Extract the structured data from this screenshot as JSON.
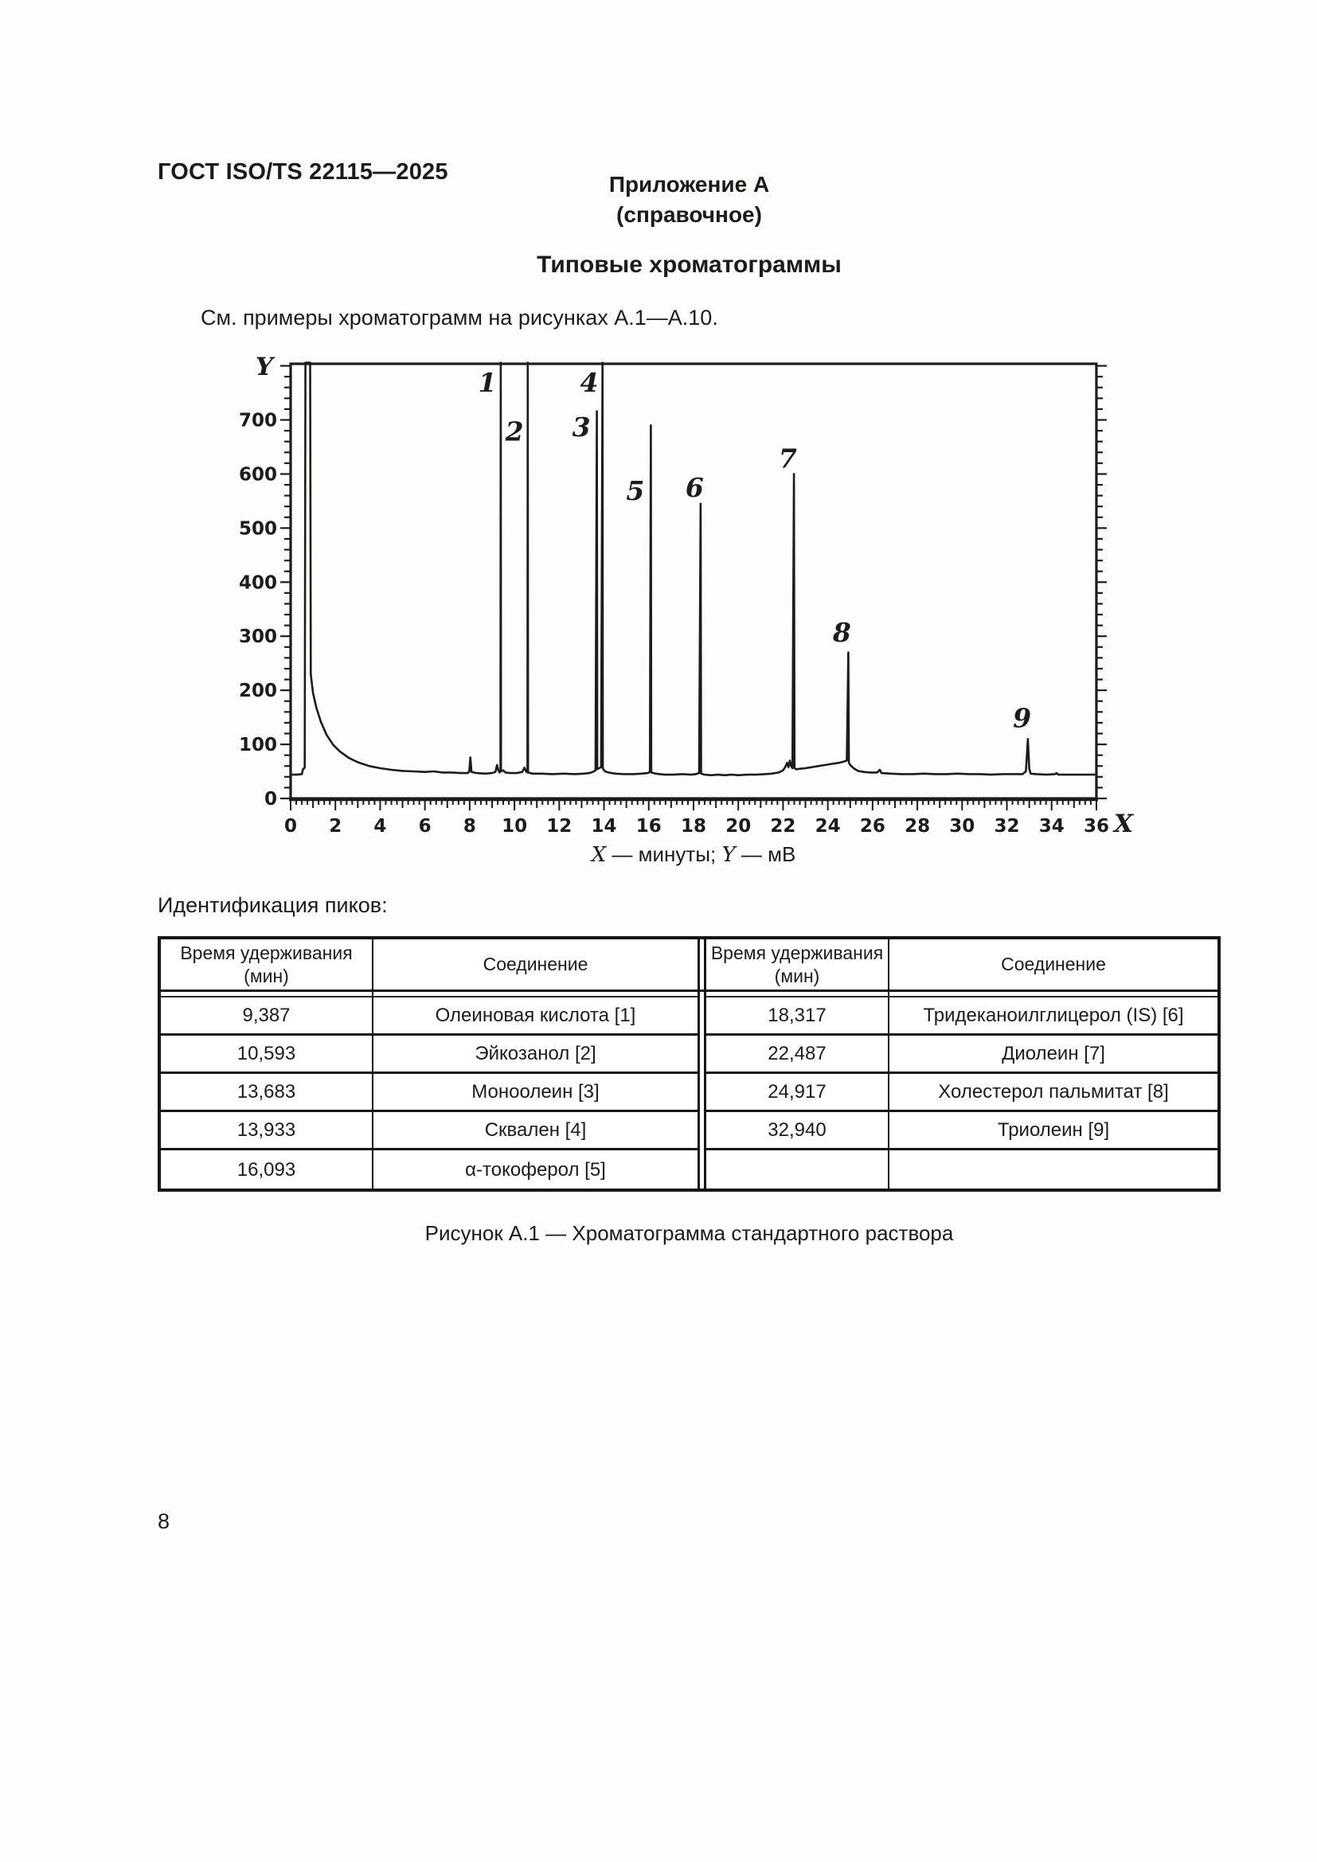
{
  "page": {
    "header": "ГОСТ ISO/TS 22115—2025",
    "appendix_title": "Приложение А",
    "appendix_subtitle": "(справочное)",
    "section_title": "Типовые хроматограммы",
    "intro_text": "См. примеры хроматограмм на рисунках А.1—А.10.",
    "peaks_id_label": "Идентификация пиков:",
    "figure_caption": "Рисунок А.1 — Хроматограмма стандартного раствора",
    "page_number": "8"
  },
  "chart_data": {
    "type": "line",
    "title": "",
    "xlabel": "X",
    "ylabel": "Y",
    "axis_note": {
      "x_sym": "X",
      "mid": " — минуты; ",
      "y_sym": "Y",
      "end": " — мВ"
    },
    "xlim": [
      0,
      36
    ],
    "ylim": [
      0,
      800
    ],
    "grid": "off",
    "x_tick_labels": [
      0,
      2,
      4,
      6,
      8,
      10,
      12,
      14,
      16,
      18,
      20,
      22,
      24,
      26,
      28,
      30,
      32,
      34,
      36
    ],
    "y_tick_labels": [
      0,
      100,
      200,
      300,
      400,
      500,
      600,
      700
    ],
    "peaks": [
      {
        "n": "1",
        "rt_min": 9.387,
        "height_mv": "off-scale"
      },
      {
        "n": "2",
        "rt_min": 10.593,
        "height_mv": "off-scale"
      },
      {
        "n": "3",
        "rt_min": 13.683,
        "height_mv": 715
      },
      {
        "n": "4",
        "rt_min": 13.933,
        "height_mv": "off-scale"
      },
      {
        "n": "5",
        "rt_min": 16.093,
        "height_mv": 690
      },
      {
        "n": "6",
        "rt_min": 18.317,
        "height_mv": 545
      },
      {
        "n": "7",
        "rt_min": 22.487,
        "height_mv": 600
      },
      {
        "n": "8",
        "rt_min": 24.917,
        "height_mv": 270
      },
      {
        "n": "9",
        "rt_min": 32.94,
        "height_mv": 110
      }
    ],
    "peak_labels": [
      {
        "text": "1",
        "t": 8.79,
        "mv": 752
      },
      {
        "text": "2",
        "t": 10.0,
        "mv": 662
      },
      {
        "text": "3",
        "t": 12.99,
        "mv": 670
      },
      {
        "text": "4",
        "t": 13.34,
        "mv": 752
      },
      {
        "text": "5",
        "t": 15.4,
        "mv": 552
      },
      {
        "text": "6",
        "t": 18.05,
        "mv": 558
      },
      {
        "text": "7",
        "t": 22.21,
        "mv": 612
      },
      {
        "text": "8",
        "t": 24.63,
        "mv": 290
      },
      {
        "text": "9",
        "t": 32.68,
        "mv": 132
      }
    ],
    "curve": [
      [
        0,
        44
      ],
      [
        0.3,
        44
      ],
      [
        0.5,
        45
      ],
      [
        0.55,
        54
      ],
      [
        0.6,
        56
      ],
      [
        0.63,
        57
      ],
      [
        0.66,
        806
      ],
      [
        0.87,
        806
      ],
      [
        0.9,
        230
      ],
      [
        1.0,
        195
      ],
      [
        1.15,
        168
      ],
      [
        1.35,
        142
      ],
      [
        1.6,
        118
      ],
      [
        1.9,
        99
      ],
      [
        2.2,
        87
      ],
      [
        2.6,
        75
      ],
      [
        3.0,
        67
      ],
      [
        3.5,
        60
      ],
      [
        4.0,
        56
      ],
      [
        4.5,
        53
      ],
      [
        5.0,
        51
      ],
      [
        5.5,
        50
      ],
      [
        6.0,
        49
      ],
      [
        6.4,
        50
      ],
      [
        6.8,
        48
      ],
      [
        7.2,
        48
      ],
      [
        7.6,
        47
      ],
      [
        7.9,
        47
      ],
      [
        7.98,
        49
      ],
      [
        8.03,
        76
      ],
      [
        8.08,
        49
      ],
      [
        8.3,
        47
      ],
      [
        8.7,
        46
      ],
      [
        9.0,
        47
      ],
      [
        9.15,
        49
      ],
      [
        9.22,
        62
      ],
      [
        9.28,
        52
      ],
      [
        9.34,
        48
      ],
      [
        9.375,
        50
      ],
      [
        9.387,
        806
      ],
      [
        9.4,
        50
      ],
      [
        9.5,
        52
      ],
      [
        9.6,
        48
      ],
      [
        9.8,
        47
      ],
      [
        10.1,
        47
      ],
      [
        10.35,
        49
      ],
      [
        10.45,
        57
      ],
      [
        10.52,
        50
      ],
      [
        10.58,
        48
      ],
      [
        10.593,
        806
      ],
      [
        10.61,
        48
      ],
      [
        10.8,
        46
      ],
      [
        11.2,
        46
      ],
      [
        11.7,
        45
      ],
      [
        12.2,
        46
      ],
      [
        12.7,
        45
      ],
      [
        13.1,
        46
      ],
      [
        13.35,
        47
      ],
      [
        13.5,
        49
      ],
      [
        13.62,
        52
      ],
      [
        13.683,
        716
      ],
      [
        13.7,
        54
      ],
      [
        13.78,
        56
      ],
      [
        13.87,
        58
      ],
      [
        13.933,
        806
      ],
      [
        13.95,
        55
      ],
      [
        14.05,
        50
      ],
      [
        14.2,
        48
      ],
      [
        14.5,
        46
      ],
      [
        14.9,
        45
      ],
      [
        15.3,
        45
      ],
      [
        15.7,
        46
      ],
      [
        15.95,
        47
      ],
      [
        16.05,
        49
      ],
      [
        16.093,
        690
      ],
      [
        16.11,
        48
      ],
      [
        16.3,
        46
      ],
      [
        16.7,
        44
      ],
      [
        17.1,
        44
      ],
      [
        17.5,
        45
      ],
      [
        17.9,
        44
      ],
      [
        18.1,
        45
      ],
      [
        18.25,
        47
      ],
      [
        18.317,
        545
      ],
      [
        18.34,
        46
      ],
      [
        18.5,
        44
      ],
      [
        18.8,
        43
      ],
      [
        19.1,
        44
      ],
      [
        19.4,
        43
      ],
      [
        19.7,
        44
      ],
      [
        20.0,
        43
      ],
      [
        20.4,
        44
      ],
      [
        20.8,
        44
      ],
      [
        21.2,
        45
      ],
      [
        21.5,
        46
      ],
      [
        21.8,
        48
      ],
      [
        22.0,
        52
      ],
      [
        22.1,
        58
      ],
      [
        22.18,
        66
      ],
      [
        22.24,
        58
      ],
      [
        22.3,
        70
      ],
      [
        22.36,
        60
      ],
      [
        22.42,
        56
      ],
      [
        22.487,
        600
      ],
      [
        22.51,
        56
      ],
      [
        22.6,
        54
      ],
      [
        22.8,
        55
      ],
      [
        23.0,
        56
      ],
      [
        23.3,
        58
      ],
      [
        23.6,
        60
      ],
      [
        23.9,
        62
      ],
      [
        24.2,
        64
      ],
      [
        24.5,
        66
      ],
      [
        24.7,
        68
      ],
      [
        24.85,
        70
      ],
      [
        24.917,
        270
      ],
      [
        24.94,
        66
      ],
      [
        25.0,
        62
      ],
      [
        25.15,
        56
      ],
      [
        25.35,
        51
      ],
      [
        25.6,
        49
      ],
      [
        25.9,
        48
      ],
      [
        26.2,
        48
      ],
      [
        26.32,
        53
      ],
      [
        26.4,
        47
      ],
      [
        26.8,
        46
      ],
      [
        27.3,
        45
      ],
      [
        27.8,
        45
      ],
      [
        28.3,
        46
      ],
      [
        28.8,
        45
      ],
      [
        29.3,
        45
      ],
      [
        29.8,
        46
      ],
      [
        30.3,
        45
      ],
      [
        30.8,
        45
      ],
      [
        31.3,
        44
      ],
      [
        31.8,
        45
      ],
      [
        32.3,
        45
      ],
      [
        32.7,
        45
      ],
      [
        32.85,
        50
      ],
      [
        32.94,
        110
      ],
      [
        33.0,
        55
      ],
      [
        33.06,
        46
      ],
      [
        33.3,
        45
      ],
      [
        33.8,
        44
      ],
      [
        34.15,
        45
      ],
      [
        34.22,
        47
      ],
      [
        34.3,
        44
      ],
      [
        34.8,
        44
      ],
      [
        35.4,
        44
      ],
      [
        36,
        44
      ]
    ]
  },
  "table": {
    "header": {
      "time_line1": "Время удерживания",
      "time_line2": "(мин)",
      "compound": "Соединение"
    },
    "left_rows": [
      [
        "9,387",
        "Олеиновая кислота [1]"
      ],
      [
        "10,593",
        "Эйкозанол [2]"
      ],
      [
        "13,683",
        "Моноолеин [3]"
      ],
      [
        "13,933",
        "Сквален [4]"
      ],
      [
        "16,093",
        "α-токоферол [5]"
      ]
    ],
    "right_rows": [
      [
        "18,317",
        "Тридеканоилглицерол (IS) [6]"
      ],
      [
        "22,487",
        "Диолеин [7]"
      ],
      [
        "24,917",
        "Холестерол пальмитат [8]"
      ],
      [
        "32,940",
        "Триолеин [9]"
      ],
      [
        "",
        ""
      ]
    ]
  }
}
